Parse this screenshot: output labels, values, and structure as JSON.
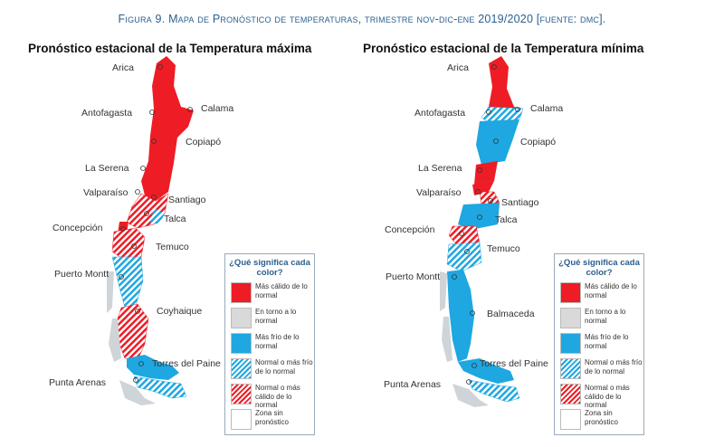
{
  "caption": {
    "label": "Figura 9.",
    "text": "Mapa de Pronóstico de temperaturas, trimestre nov-dic-ene 2019/2020 [fuente: dmc]."
  },
  "maps": [
    {
      "title": "Pronóstico estacional de la Temperatura máxima",
      "cities": [
        "Arica",
        "Calama",
        "Antofagasta",
        "Copiapó",
        "La Serena",
        "Valparaíso",
        "Santiago",
        "Talca",
        "Concepción",
        "Temuco",
        "Puerto Montt",
        "Coyhaique",
        "Torres del Paine",
        "Punta Arenas"
      ]
    },
    {
      "title": "Pronóstico estacional de la Temperatura mínima",
      "cities": [
        "Arica",
        "Calama",
        "Antofagasta",
        "Copiapó",
        "La Serena",
        "Valparaíso",
        "Santiago",
        "Talca",
        "Concepción",
        "Temuco",
        "Puerto Montt",
        "Balmaceda",
        "Torres del Paine",
        "Punta Arenas"
      ]
    }
  ],
  "legend": {
    "title": "¿Qué significa cada color?",
    "items": [
      {
        "label": "Más cálido de lo normal",
        "pattern": "solid",
        "color": "#ee1c25"
      },
      {
        "label": "En torno a lo normal",
        "pattern": "solid",
        "color": "#d9d9d9"
      },
      {
        "label": "Más frío de lo normal",
        "pattern": "solid",
        "color": "#1ea7e1"
      },
      {
        "label": "Normal o más frío de lo normal",
        "pattern": "hatch",
        "color": "#1ea7e1"
      },
      {
        "label": "Normal o más cálido de lo normal",
        "pattern": "hatch",
        "color": "#ee1c25"
      },
      {
        "label": "Zona sin pronóstico",
        "pattern": "solid",
        "color": "#ffffff"
      }
    ]
  }
}
